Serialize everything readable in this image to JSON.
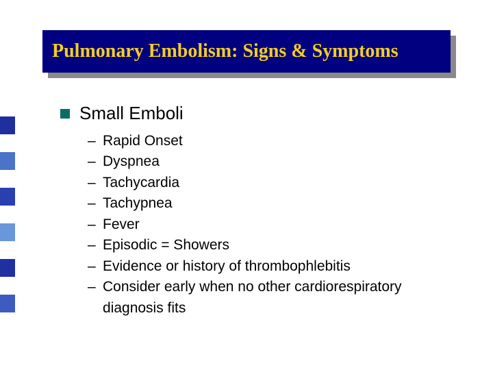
{
  "title": "Pulmonary Embolism: Signs & Symptoms",
  "title_color": "#f4cd22",
  "title_bg": "#000080",
  "title_shadow": "#8a8a8a",
  "title_font_family": "Times New Roman",
  "title_fontsize_pt": 21,
  "heading": "Small Emboli",
  "heading_fontsize_pt": 20,
  "bullet_color": "#0d6b66",
  "sub_fontsize_pt": 16,
  "sub_items": [
    "Rapid Onset",
    "Dyspnea",
    "Tachycardia",
    "Tachypnea",
    "Fever",
    "Episodic = Showers",
    "Evidence or history of thrombophlebitis",
    "Consider early when no other cardiorespiratory diagnosis fits"
  ],
  "deco_bar_colors": [
    "#1f2f9e",
    "#ffffff",
    "#4a74c7",
    "#ffffff",
    "#2a3fb0",
    "#ffffff",
    "#6a96db",
    "#ffffff",
    "#2030a0",
    "#ffffff",
    "#3e5cc0"
  ],
  "background_color": "#ffffff"
}
